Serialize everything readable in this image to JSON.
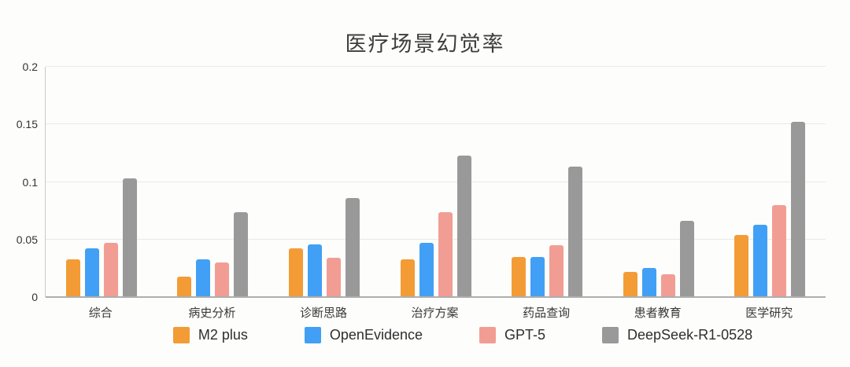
{
  "title": "医疗场景幻觉率",
  "colors": {
    "m2_plus": "#f39c36",
    "openevidence": "#41a0f5",
    "gpt5": "#f29d94",
    "deepseek": "#999999",
    "gridline": "#eaeaea",
    "baseline": "#aeaeae",
    "axis_line": "#c9c9c9",
    "title_text": "#3d3d3d",
    "tick_text": "#333333"
  },
  "chart_data": {
    "type": "bar",
    "title": "医疗场景幻觉率",
    "categories": [
      "综合",
      "病史分析",
      "诊断思路",
      "治疗方案",
      "药品查询",
      "患者教育",
      "医学研究"
    ],
    "series": [
      {
        "name": "M2 plus",
        "color": "#f39c36",
        "values": [
          0.033,
          0.018,
          0.042,
          0.033,
          0.035,
          0.022,
          0.054
        ]
      },
      {
        "name": "OpenEvidence",
        "color": "#41a0f5",
        "values": [
          0.042,
          0.033,
          0.046,
          0.047,
          0.035,
          0.025,
          0.063
        ]
      },
      {
        "name": "GPT-5",
        "color": "#f29d94",
        "values": [
          0.047,
          0.03,
          0.034,
          0.074,
          0.045,
          0.02,
          0.08
        ]
      },
      {
        "name": "DeepSeek-R1-0528",
        "color": "#999999",
        "values": [
          0.103,
          0.074,
          0.086,
          0.123,
          0.113,
          0.066,
          0.152
        ]
      }
    ],
    "xlabel": "",
    "ylabel": "",
    "ylim": [
      0,
      0.2
    ],
    "yticks": [
      0,
      0.05,
      0.1,
      0.15,
      0.2
    ],
    "ytick_labels": [
      "0",
      "0.05",
      "0.1",
      "0.15",
      "0.2"
    ],
    "grid": true,
    "legend_position": "bottom"
  }
}
